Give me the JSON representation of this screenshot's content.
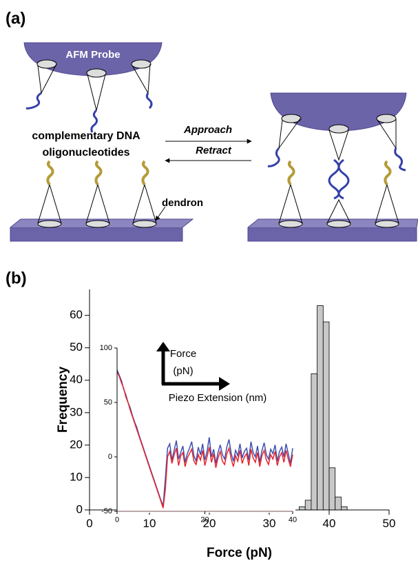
{
  "diagram": {
    "panel_a": "(a)",
    "probe": "AFM Probe",
    "complementary": [
      "complementary DNA",
      "oligonucleotides"
    ],
    "approach": "Approach",
    "retract": "Retract",
    "dendron": "dendron",
    "panel_b": "(b)"
  },
  "chart_data": [
    {
      "type": "histogram",
      "xlabel": "Force (pN)",
      "ylabel": "Frequency",
      "bins": [
        35,
        36,
        37,
        38,
        39,
        40,
        41,
        42,
        43
      ],
      "counts": [
        1,
        3,
        42,
        63,
        58,
        13,
        4,
        1
      ],
      "color": "#c8c8c8",
      "xlim": [
        0,
        50
      ],
      "ylim": [
        0,
        68
      ],
      "xticks": [
        0,
        10,
        20,
        30,
        40,
        50
      ],
      "yticks": [
        0,
        10,
        20,
        30,
        40,
        50,
        60
      ]
    },
    {
      "type": "line",
      "annotations": [
        "Force",
        "(pN)",
        "Piezo Extension (nm)"
      ],
      "x": [
        0,
        0.5,
        1,
        1.5,
        2,
        2.5,
        3,
        3.5,
        4,
        4.5,
        5,
        5.5,
        6,
        6.5,
        7,
        7.5,
        8,
        8.5,
        9,
        9.5,
        10,
        10.5,
        11,
        11.5,
        12,
        12.5,
        13,
        13.5,
        14,
        14.5,
        15,
        15.5,
        16,
        16.5,
        17,
        17.5,
        18,
        18.5,
        19,
        19.5,
        20,
        20.5,
        21,
        21.5,
        22,
        22.5,
        23,
        23.5,
        24,
        24.5,
        25,
        25.5,
        26,
        26.5,
        27,
        27.5,
        28,
        28.5,
        29,
        29.5,
        30,
        30.5,
        31,
        31.5,
        32,
        32.5,
        33,
        33.5,
        34,
        34.5,
        35,
        35.5,
        36,
        36.5,
        37,
        37.5,
        38,
        38.5,
        39,
        39.5,
        40
      ],
      "series": [
        {
          "color": "#3d4fb0",
          "values": [
            80,
            75,
            70,
            62,
            57,
            50,
            45,
            38,
            32,
            27,
            20,
            14,
            8,
            2,
            -4,
            -10,
            -16,
            -22,
            -28,
            -34,
            -40,
            -45,
            -20,
            8,
            12,
            -3,
            6,
            15,
            -2,
            4,
            10,
            -5,
            3,
            8,
            14,
            1,
            -4,
            9,
            2,
            12,
            -3,
            5,
            18,
            0,
            7,
            -6,
            4,
            11,
            2,
            -2,
            9,
            16,
            3,
            -4,
            6,
            1,
            12,
            -1,
            5,
            8,
            -3,
            14,
            4,
            0,
            10,
            -5,
            6,
            13,
            2,
            -2,
            7,
            3,
            11,
            -4,
            5,
            9,
            0,
            12,
            3,
            -6,
            8
          ]
        },
        {
          "color": "#e8232a",
          "values": [
            78,
            74,
            68,
            63,
            55,
            50,
            43,
            37,
            31,
            25,
            19,
            13,
            7,
            1,
            -5,
            -11,
            -17,
            -23,
            -29,
            -35,
            -41,
            -47,
            -30,
            0,
            5,
            -6,
            2,
            8,
            -8,
            1,
            4,
            -9,
            -1,
            3,
            7,
            -4,
            -7,
            2,
            -3,
            6,
            -8,
            0,
            9,
            -5,
            3,
            -10,
            -1,
            5,
            -4,
            -7,
            3,
            8,
            -2,
            -9,
            1,
            -4,
            6,
            -6,
            0,
            3,
            -8,
            7,
            -1,
            -5,
            4,
            -9,
            1,
            6,
            -3,
            -7,
            2,
            -2,
            5,
            -8,
            0,
            4,
            -5,
            6,
            -2,
            -9,
            2
          ]
        }
      ],
      "xlim": [
        0,
        40
      ],
      "ylim": [
        -50,
        100
      ],
      "xticks": [
        0,
        20,
        40
      ],
      "yticks": [
        -50,
        0,
        50,
        100
      ]
    }
  ]
}
